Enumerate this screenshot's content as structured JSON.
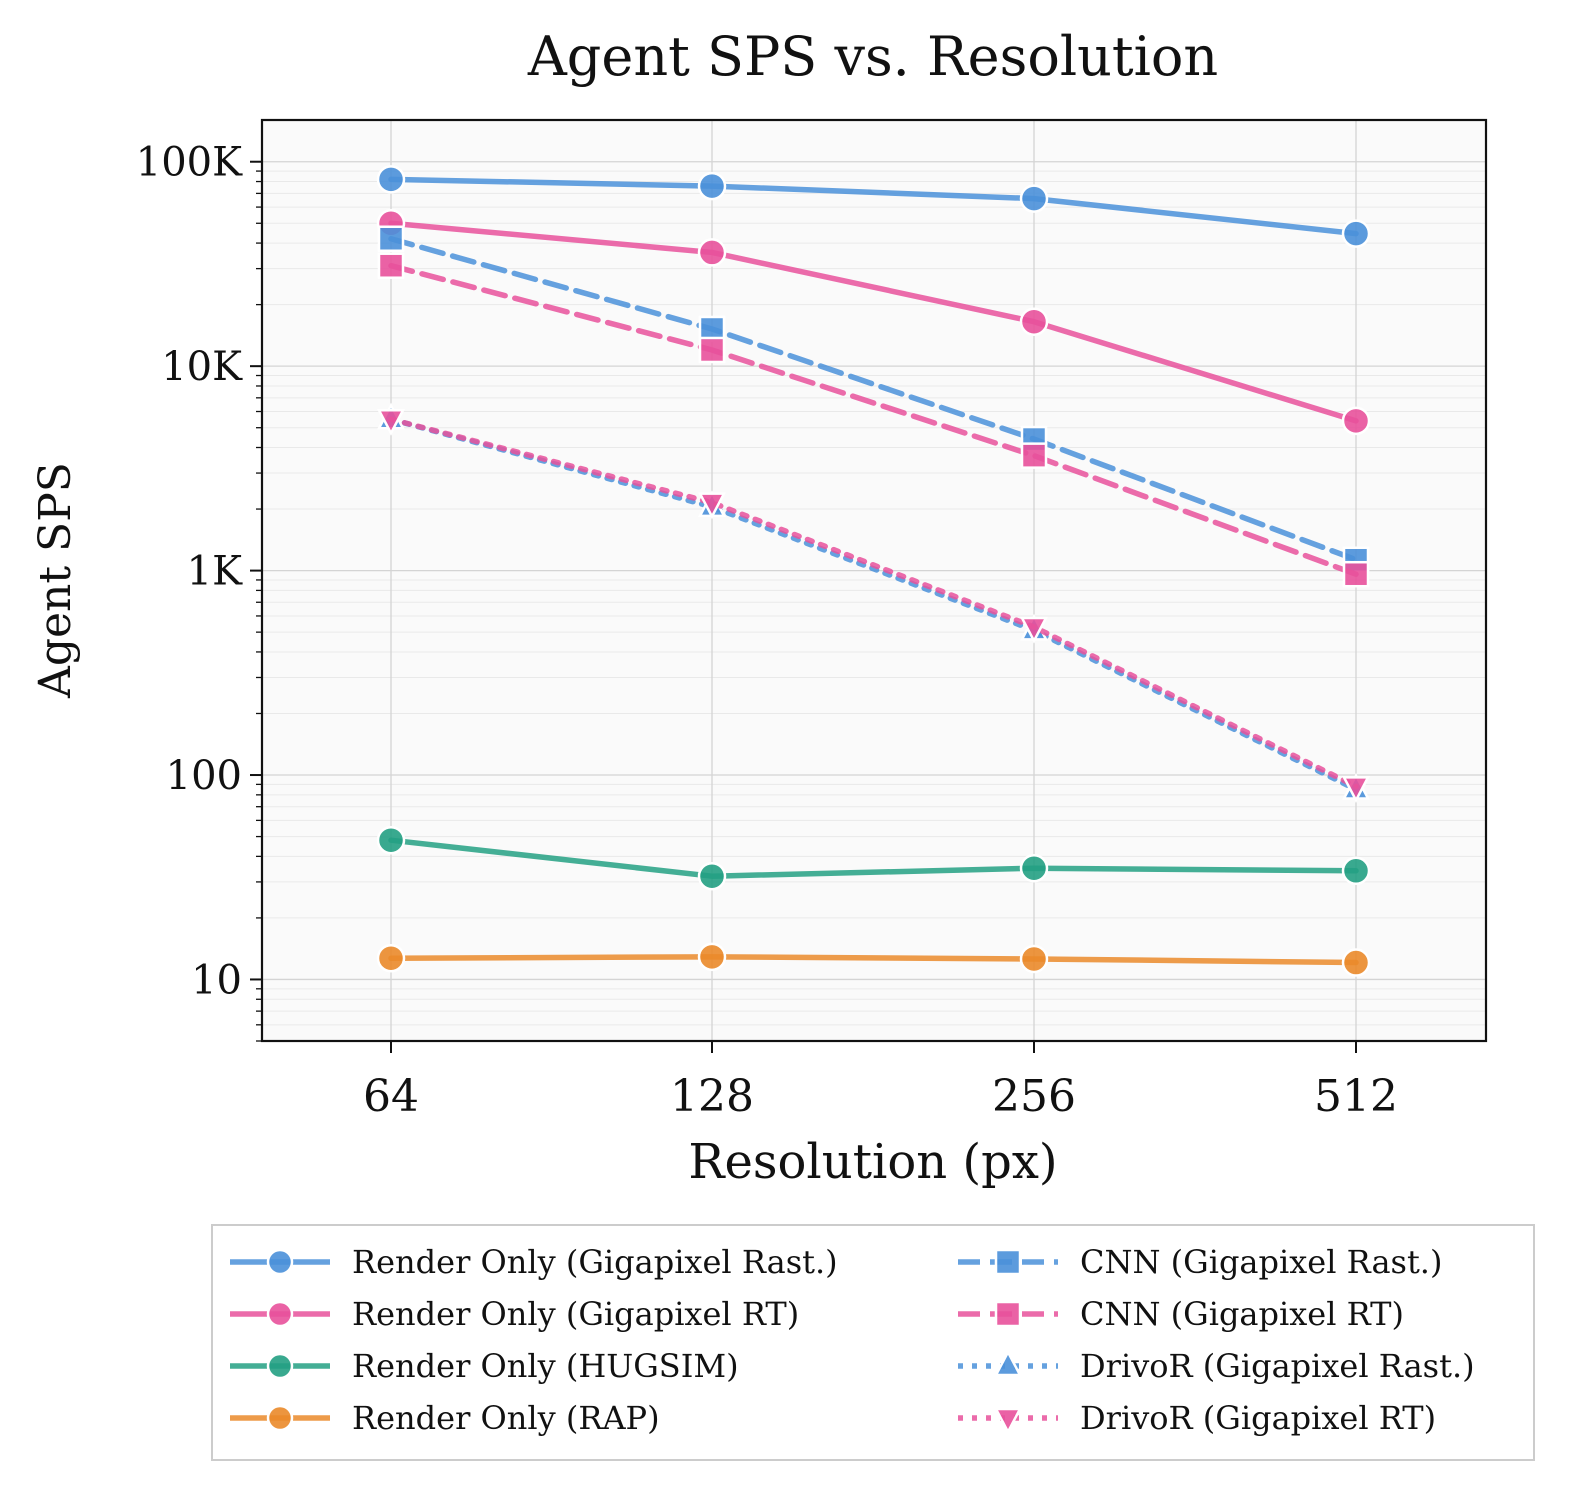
{
  "chart_data": {
    "type": "line",
    "title": "Agent SPS vs. Resolution",
    "xlabel": "Resolution (px)",
    "ylabel": "Agent SPS",
    "x_scale": "categorical",
    "y_scale": "log",
    "categories": [
      "64",
      "128",
      "256",
      "512"
    ],
    "ylim": [
      5,
      160000
    ],
    "y_ticks": [
      {
        "value": 10,
        "label": "10"
      },
      {
        "value": 100,
        "label": "100"
      },
      {
        "value": 1000,
        "label": "1K"
      },
      {
        "value": 10000,
        "label": "10K"
      },
      {
        "value": 100000,
        "label": "100K"
      }
    ],
    "grid": true,
    "legend_position": "below plot, two columns",
    "series": [
      {
        "name": "Render Only (Gigapixel Rast.)",
        "values": [
          82000,
          76000,
          66000,
          44500
        ],
        "color": "#4a90d9",
        "line_style": "solid",
        "marker": "circle"
      },
      {
        "name": "Render Only (Gigapixel RT)",
        "values": [
          50000,
          36000,
          16500,
          5400
        ],
        "color": "#e8519b",
        "line_style": "solid",
        "marker": "circle"
      },
      {
        "name": "Render Only (HUGSIM)",
        "values": [
          48,
          32,
          35,
          34
        ],
        "color": "#23a083",
        "line_style": "solid",
        "marker": "circle"
      },
      {
        "name": "Render Only (RAP)",
        "values": [
          12.7,
          12.9,
          12.6,
          12.1
        ],
        "color": "#ea8a2a",
        "line_style": "solid",
        "marker": "circle"
      },
      {
        "name": "CNN (Gigapixel Rast.)",
        "values": [
          42000,
          15200,
          4400,
          1130
        ],
        "color": "#4a90d9",
        "line_style": "dashed",
        "marker": "square"
      },
      {
        "name": "CNN (Gigapixel RT)",
        "values": [
          31000,
          12000,
          3650,
          960
        ],
        "color": "#e8519b",
        "line_style": "dashed",
        "marker": "square"
      },
      {
        "name": "DrivoR (Gigapixel Rast.)",
        "values": [
          5500,
          2050,
          510,
          85
        ],
        "color": "#4a90d9",
        "line_style": "dotted",
        "marker": "triangle-up"
      },
      {
        "name": "DrivoR (Gigapixel RT)",
        "values": [
          5500,
          2150,
          530,
          88
        ],
        "color": "#e8519b",
        "line_style": "dotted",
        "marker": "triangle-down"
      }
    ]
  }
}
